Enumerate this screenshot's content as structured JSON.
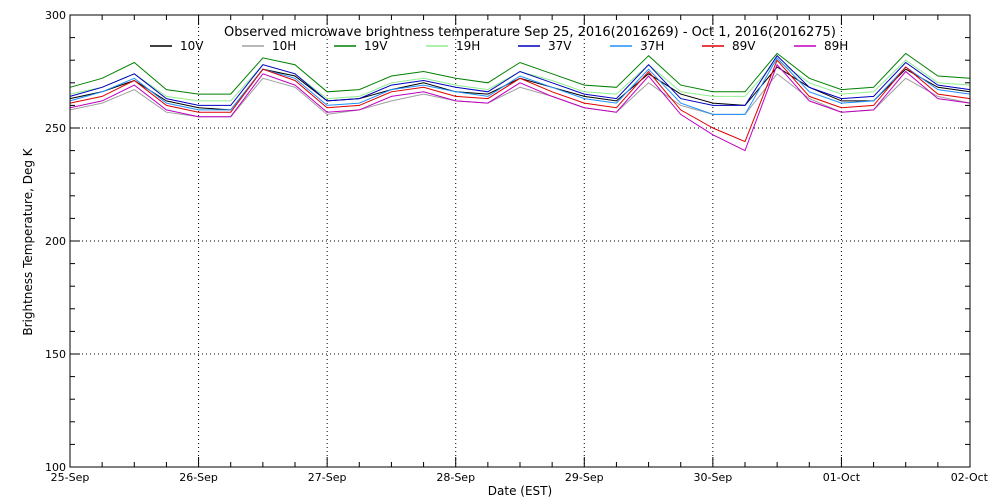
{
  "chart_data": {
    "type": "line",
    "title": "Observed microwave brightness temperature Sep 25, 2016(2016269) - Oct  1, 2016(2016275)",
    "xlabel": "Date (EST)",
    "ylabel": "Brightness Temperature, Deg K",
    "ylim": [
      100,
      300
    ],
    "yticks": [
      100,
      150,
      200,
      250,
      300
    ],
    "xlim": [
      0,
      7
    ],
    "xtick_labels": [
      "25-Sep",
      "26-Sep",
      "27-Sep",
      "28-Sep",
      "29-Sep",
      "30-Sep",
      "01-Oct",
      "02-Oct"
    ],
    "grid": true,
    "legend_position": "top",
    "x": [
      0,
      0.25,
      0.5,
      0.75,
      1,
      1.25,
      1.5,
      1.75,
      2,
      2.25,
      2.5,
      2.75,
      3,
      3.25,
      3.5,
      3.75,
      4,
      4.25,
      4.5,
      4.75,
      5,
      5.25,
      5.5,
      5.75,
      6,
      6.25,
      6.5,
      6.75,
      7
    ],
    "series": [
      {
        "name": "10V",
        "color": "#000000",
        "values": [
          263,
          266,
          271,
          262,
          259,
          258,
          276,
          273,
          262,
          263,
          267,
          270,
          266,
          265,
          272,
          268,
          264,
          262,
          274,
          265,
          261,
          260,
          277,
          268,
          262,
          262,
          276,
          268,
          266
        ]
      },
      {
        "name": "10H",
        "color": "#a0a0a0",
        "values": [
          258,
          261,
          267,
          257,
          255,
          255,
          272,
          268,
          256,
          258,
          262,
          265,
          262,
          261,
          268,
          264,
          259,
          257,
          270,
          260,
          256,
          256,
          274,
          263,
          257,
          258,
          272,
          264,
          261
        ]
      },
      {
        "name": "19V",
        "color": "#008000",
        "values": [
          268,
          272,
          279,
          267,
          265,
          265,
          281,
          278,
          266,
          267,
          273,
          275,
          272,
          270,
          279,
          274,
          269,
          268,
          282,
          269,
          266,
          266,
          283,
          272,
          267,
          268,
          283,
          273,
          272
        ]
      },
      {
        "name": "19H",
        "color": "#90ee90",
        "values": [
          265,
          268,
          274,
          264,
          262,
          262,
          278,
          274,
          263,
          264,
          270,
          272,
          269,
          267,
          275,
          271,
          266,
          265,
          278,
          266,
          264,
          264,
          280,
          270,
          265,
          266,
          280,
          270,
          269
        ]
      },
      {
        "name": "37V",
        "color": "#0000c0",
        "values": [
          264,
          268,
          274,
          263,
          260,
          260,
          278,
          274,
          262,
          263,
          269,
          271,
          268,
          266,
          275,
          270,
          265,
          263,
          278,
          263,
          260,
          260,
          282,
          268,
          263,
          264,
          279,
          269,
          267
        ]
      },
      {
        "name": "37H",
        "color": "#1e90ff",
        "values": [
          262,
          266,
          272,
          261,
          258,
          258,
          276,
          272,
          260,
          261,
          267,
          269,
          266,
          264,
          273,
          268,
          263,
          261,
          276,
          261,
          256,
          256,
          281,
          266,
          261,
          262,
          277,
          267,
          265
        ]
      },
      {
        "name": "89V",
        "color": "#e00000",
        "values": [
          261,
          264,
          271,
          260,
          257,
          257,
          276,
          271,
          259,
          260,
          266,
          268,
          264,
          263,
          272,
          266,
          261,
          259,
          275,
          258,
          250,
          244,
          280,
          264,
          259,
          260,
          277,
          265,
          263
        ]
      },
      {
        "name": "89H",
        "color": "#c000c0",
        "values": [
          259,
          262,
          269,
          258,
          255,
          255,
          274,
          269,
          257,
          258,
          264,
          266,
          262,
          261,
          270,
          264,
          259,
          257,
          273,
          256,
          247,
          240,
          278,
          262,
          257,
          258,
          275,
          263,
          261
        ]
      }
    ]
  }
}
